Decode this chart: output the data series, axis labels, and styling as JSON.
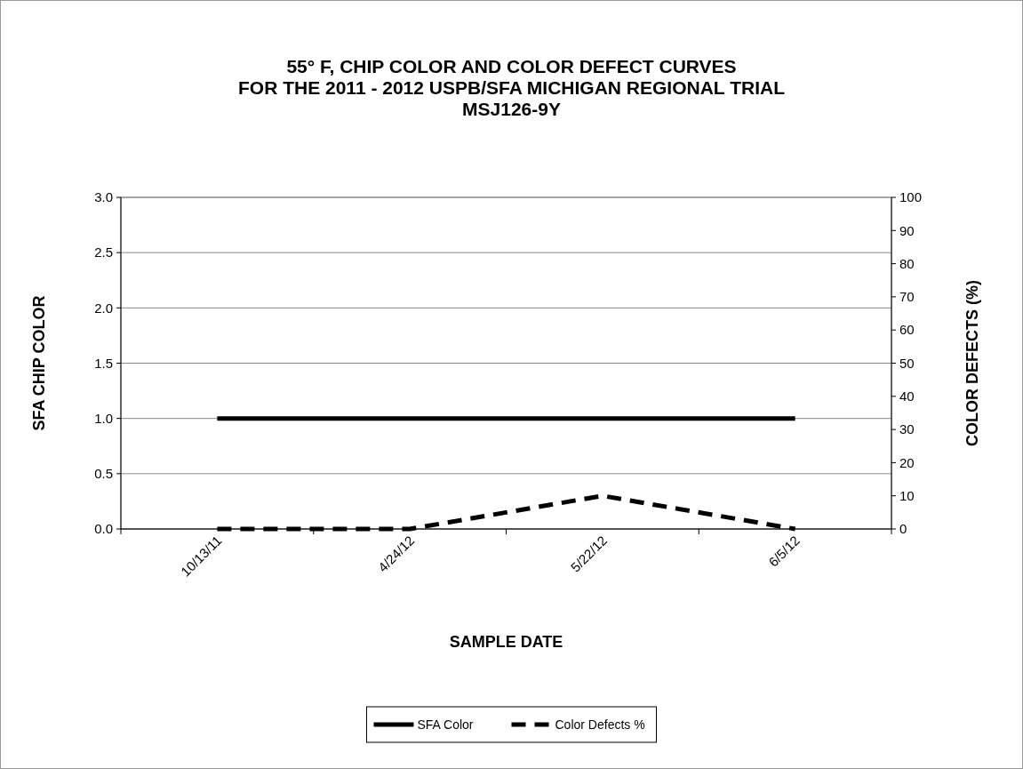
{
  "chart_data": {
    "type": "line",
    "title": "55° F, CHIP COLOR AND COLOR DEFECT CURVES\nFOR THE 2011 - 2012 USPB/SFA MICHIGAN REGIONAL TRIAL\nMSJ126-9Y",
    "xlabel": "SAMPLE DATE",
    "ylabel": "SFA CHIP COLOR",
    "y2label": "COLOR DEFECTS (%)",
    "categories": [
      "10/13/11",
      "4/24/12",
      "5/22/12",
      "6/5/12"
    ],
    "series": [
      {
        "name": "SFA Color",
        "color": "#000000",
        "values": [
          1.0,
          1.0,
          1.0,
          1.0
        ],
        "line_style": "solid"
      },
      {
        "name": "Color Defects %",
        "color": "#000000",
        "values": [
          0,
          0,
          10,
          0
        ],
        "axis": "y2",
        "line_style": "dashed"
      }
    ],
    "ylim": [
      0,
      3
    ],
    "yticks": [
      {
        "value": 0,
        "label": "0.0"
      },
      {
        "value": 0.5,
        "label": "0.5"
      },
      {
        "value": 1,
        "label": "1.0"
      },
      {
        "value": 1.5,
        "label": "1.5"
      },
      {
        "value": 2,
        "label": "2.0"
      },
      {
        "value": 2.5,
        "label": "2.5"
      },
      {
        "value": 3,
        "label": "3.0"
      }
    ],
    "y2lim": [
      0,
      100
    ],
    "y2ticks": [
      0,
      10,
      20,
      30,
      40,
      50,
      60,
      70,
      80,
      90,
      100
    ],
    "grid": "y",
    "legend": "bottom",
    "marker": "none"
  }
}
